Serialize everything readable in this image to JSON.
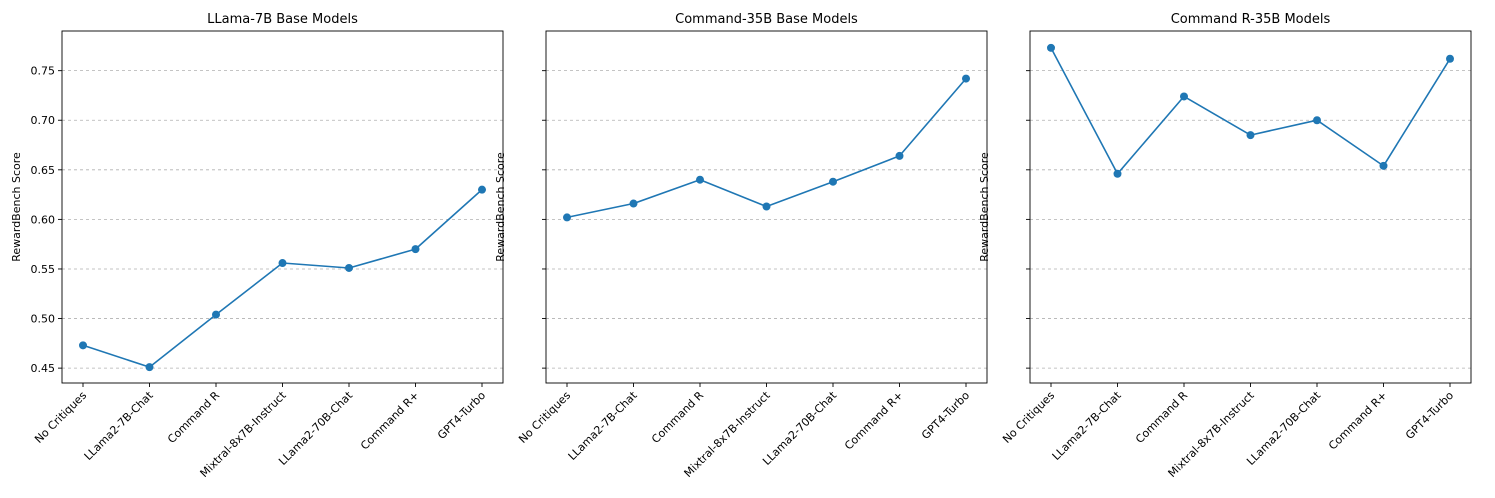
{
  "chart_data": [
    {
      "type": "line",
      "title": "LLama-7B Base Models",
      "xlabel": "",
      "ylabel": "RewardBench Score",
      "categories": [
        "No Critiques",
        "LLama2-7B-Chat",
        "Command R",
        "Mixtral-8x7B-Instruct",
        "LLama2-70B-Chat",
        "Command R+",
        "GPT4-Turbo"
      ],
      "values": [
        0.473,
        0.451,
        0.504,
        0.556,
        0.551,
        0.57,
        0.63
      ],
      "ylim": [
        0.435,
        0.79
      ],
      "yticks": [
        0.45,
        0.5,
        0.55,
        0.6,
        0.65,
        0.7,
        0.75
      ],
      "ytick_labels": [
        "0.45",
        "0.50",
        "0.55",
        "0.60",
        "0.65",
        "0.70",
        "0.75"
      ],
      "show_ytick_labels": true,
      "grid": "y-dashed",
      "color": "#1f77b4"
    },
    {
      "type": "line",
      "title": "Command-35B Base Models",
      "xlabel": "",
      "ylabel": "RewardBench Score",
      "categories": [
        "No Critiques",
        "LLama2-7B-Chat",
        "Command R",
        "Mixtral-8x7B-Instruct",
        "LLama2-70B-Chat",
        "Command R+",
        "GPT4-Turbo"
      ],
      "values": [
        0.602,
        0.616,
        0.64,
        0.613,
        0.638,
        0.664,
        0.742
      ],
      "ylim": [
        0.435,
        0.79
      ],
      "yticks": [
        0.45,
        0.5,
        0.55,
        0.6,
        0.65,
        0.7,
        0.75
      ],
      "ytick_labels": [
        "0.45",
        "0.50",
        "0.55",
        "0.60",
        "0.65",
        "0.70",
        "0.75"
      ],
      "show_ytick_labels": false,
      "grid": "y-dashed",
      "color": "#1f77b4"
    },
    {
      "type": "line",
      "title": "Command R-35B Models",
      "xlabel": "",
      "ylabel": "RewardBench Score",
      "categories": [
        "No Critiques",
        "LLama2-7B-Chat",
        "Command R",
        "Mixtral-8x7B-Instruct",
        "LLama2-70B-Chat",
        "Command R+",
        "GPT4-Turbo"
      ],
      "values": [
        0.773,
        0.646,
        0.724,
        0.685,
        0.7,
        0.654,
        0.762
      ],
      "ylim": [
        0.435,
        0.79
      ],
      "yticks": [
        0.45,
        0.5,
        0.55,
        0.6,
        0.65,
        0.7,
        0.75
      ],
      "ytick_labels": [
        "0.45",
        "0.50",
        "0.55",
        "0.60",
        "0.65",
        "0.70",
        "0.75"
      ],
      "show_ytick_labels": false,
      "grid": "y-dashed",
      "color": "#1f77b4"
    }
  ]
}
